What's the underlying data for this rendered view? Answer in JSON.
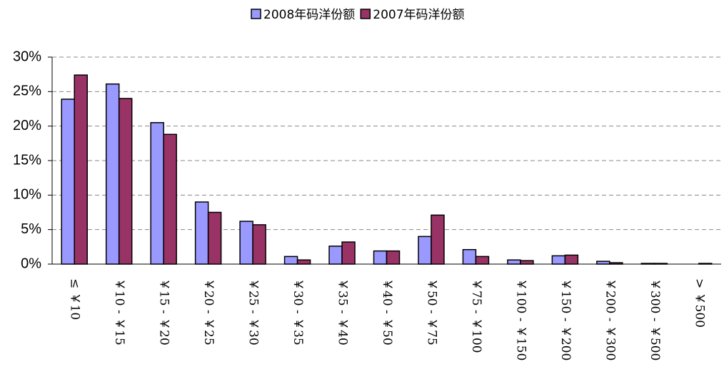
{
  "chart_data": {
    "type": "bar",
    "categories": [
      "≤ ￥10",
      "￥10 - ￥15",
      "￥15 - ￥20",
      "￥20 - ￥25",
      "￥25 - ￥30",
      "￥30 - ￥35",
      "￥35 - ￥40",
      "￥40 - ￥50",
      "￥50 - ￥75",
      "￥75 - ￥100",
      "￥100 - ￥150",
      "￥150 - ￥200",
      "￥200 - ￥300",
      "￥300 - ￥500",
      "> ￥500"
    ],
    "series": [
      {
        "name": "2008年码洋份额",
        "color": "#9999ff",
        "values": [
          23.9,
          26.1,
          20.5,
          9.0,
          6.2,
          1.1,
          2.6,
          1.9,
          4.0,
          2.1,
          0.6,
          1.2,
          0.4,
          0.1,
          0
        ]
      },
      {
        "name": "2007年码洋份额",
        "color": "#993366",
        "values": [
          27.4,
          24.0,
          18.8,
          7.5,
          5.7,
          0.6,
          3.2,
          1.9,
          7.1,
          1.1,
          0.5,
          1.3,
          0.2,
          0.1,
          0.1
        ]
      }
    ],
    "ylim": [
      0,
      30
    ],
    "yticks": [
      {
        "value": 0,
        "label": "0%"
      },
      {
        "value": 5,
        "label": "5%"
      },
      {
        "value": 10,
        "label": "10%"
      },
      {
        "value": 15,
        "label": "15%"
      },
      {
        "value": 20,
        "label": "20%"
      },
      {
        "value": 25,
        "label": "25%"
      },
      {
        "value": 30,
        "label": "30%"
      }
    ],
    "grid": true,
    "legend": "top"
  }
}
